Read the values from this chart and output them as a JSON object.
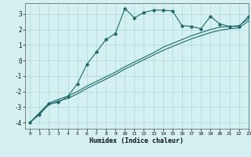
{
  "title": "",
  "xlabel": "Humidex (Indice chaleur)",
  "xlim": [
    -0.5,
    23
  ],
  "ylim": [
    -4.4,
    3.7
  ],
  "xticks": [
    0,
    1,
    2,
    3,
    4,
    5,
    6,
    7,
    8,
    9,
    10,
    11,
    12,
    13,
    14,
    15,
    16,
    17,
    18,
    19,
    20,
    21,
    22,
    23
  ],
  "yticks": [
    -4,
    -3,
    -2,
    -1,
    0,
    1,
    2,
    3
  ],
  "bg_color": "#d4f0f0",
  "line_color": "#1a6b6b",
  "grid_color": "#b0d8d8",
  "line1_x": [
    0,
    1,
    2,
    3,
    4,
    5,
    6,
    7,
    8,
    9,
    10,
    11,
    12,
    13,
    14,
    15,
    16,
    17,
    18,
    19,
    20,
    21,
    22,
    23
  ],
  "line1_y": [
    -4.0,
    -3.5,
    -2.8,
    -2.7,
    -2.3,
    -1.5,
    -0.25,
    0.55,
    1.35,
    1.75,
    3.35,
    2.75,
    3.1,
    3.25,
    3.25,
    3.2,
    2.25,
    2.2,
    2.05,
    2.85,
    2.35,
    2.2,
    2.2,
    2.85
  ],
  "line2_x": [
    0,
    2,
    3,
    4,
    5,
    6,
    7,
    8,
    9,
    10,
    11,
    12,
    13,
    14,
    15,
    16,
    17,
    18,
    19,
    20,
    21,
    22,
    23
  ],
  "line2_y": [
    -4.0,
    -2.75,
    -2.5,
    -2.3,
    -2.0,
    -1.65,
    -1.35,
    -1.05,
    -0.75,
    -0.4,
    -0.1,
    0.2,
    0.5,
    0.85,
    1.1,
    1.35,
    1.6,
    1.8,
    2.0,
    2.15,
    2.2,
    2.25,
    2.7
  ],
  "line3_x": [
    0,
    2,
    3,
    4,
    5,
    6,
    7,
    8,
    9,
    10,
    11,
    12,
    13,
    14,
    15,
    16,
    17,
    18,
    19,
    20,
    21,
    22,
    23
  ],
  "line3_y": [
    -4.0,
    -2.85,
    -2.6,
    -2.45,
    -2.15,
    -1.8,
    -1.5,
    -1.2,
    -0.9,
    -0.55,
    -0.25,
    0.05,
    0.35,
    0.65,
    0.9,
    1.15,
    1.4,
    1.6,
    1.8,
    1.95,
    2.05,
    2.1,
    2.55
  ]
}
